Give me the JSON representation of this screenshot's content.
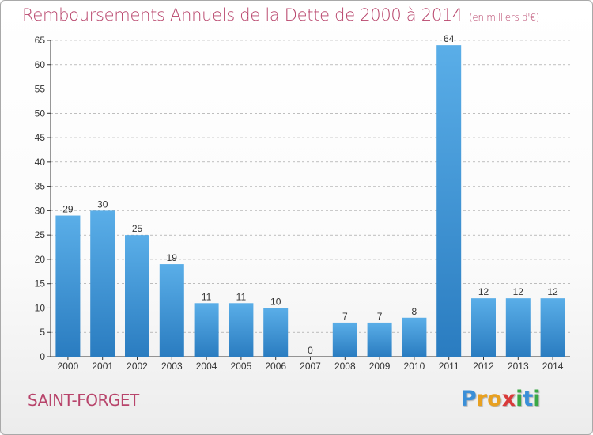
{
  "header": {
    "title": "Remboursements Annuels de la Dette de 2000 à 2014",
    "unit": "(en milliers d'€)"
  },
  "commune_name": "SAINT-FORGET",
  "logo": {
    "letters": [
      "P",
      "r",
      "o",
      "x",
      "i",
      "t",
      "i"
    ],
    "colors": [
      "#3a8fd8",
      "#e8a020",
      "#e8a020",
      "#d93a3a",
      "#3aa845",
      "#3a8fd8",
      "#3aa845"
    ]
  },
  "colors": {
    "bar_top": "#5aaee8",
    "bar_bottom": "#2a7cc0",
    "accent": "#b8446b",
    "grid": "#999999"
  },
  "chart_data": {
    "type": "bar",
    "title": "Remboursements Annuels de la Dette de 2000 à 2014",
    "subtitle": "(en milliers d'€)",
    "categories": [
      "2000",
      "2001",
      "2002",
      "2003",
      "2004",
      "2005",
      "2006",
      "2007",
      "2008",
      "2009",
      "2010",
      "2011",
      "2012",
      "2013",
      "2014"
    ],
    "values": [
      29,
      30,
      25,
      19,
      11,
      11,
      10,
      0,
      7,
      7,
      8,
      64,
      12,
      12,
      12
    ],
    "data_labels": [
      "29",
      "30",
      "25",
      "19",
      "11",
      "11",
      "10",
      "0",
      "7",
      "7",
      "8",
      "64",
      "12",
      "12",
      "12"
    ],
    "yticks": [
      0,
      5,
      10,
      15,
      20,
      25,
      30,
      35,
      40,
      45,
      50,
      55,
      60,
      65
    ],
    "ylim": [
      0,
      65
    ],
    "grid": "horizontal dashed",
    "xlabel": "",
    "ylabel": ""
  }
}
